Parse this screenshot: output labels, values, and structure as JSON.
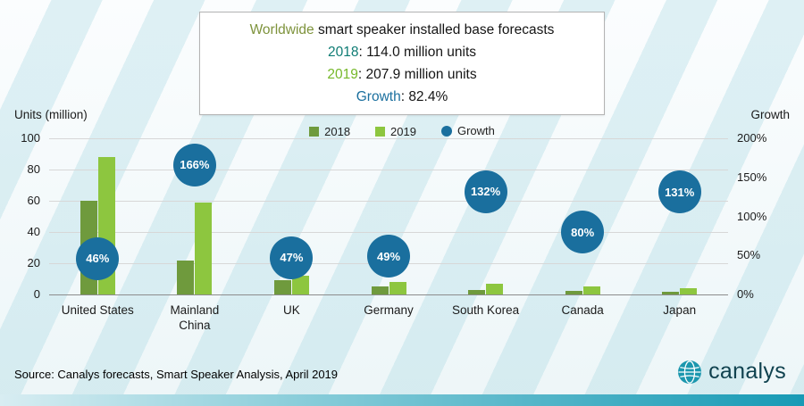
{
  "title_box": {
    "line1_highlight": "Worldwide",
    "line1_rest": " smart speaker installed base forecasts",
    "line2_label": "2018",
    "line2_rest": ": 114.0 million units",
    "line3_label": "2019",
    "line3_rest": ": 207.9 million units",
    "line4_label": "Growth",
    "line4_rest": ": 82.4%"
  },
  "axes": {
    "left_title": "Units (million)",
    "right_title": "Growth",
    "left_ticks": [
      "0",
      "20",
      "40",
      "60",
      "80",
      "100"
    ],
    "right_ticks": [
      "0%",
      "50%",
      "100%",
      "150%",
      "200%"
    ]
  },
  "legend": [
    {
      "label": "2018",
      "color": "#6f9a3d",
      "shape": "square"
    },
    {
      "label": "2019",
      "color": "#8dc63f",
      "shape": "square"
    },
    {
      "label": "Growth",
      "color": "#1a6f9e",
      "shape": "circle"
    }
  ],
  "chart_data": {
    "type": "bar",
    "title": "Worldwide smart speaker installed base forecasts",
    "subtitle": "2018: 114.0 million units; 2019: 207.9 million units; Growth: 82.4%",
    "categories": [
      "United States",
      "Mainland\nChina",
      "UK",
      "Germany",
      "South Korea",
      "Canada",
      "Japan"
    ],
    "series": [
      {
        "name": "2018",
        "axis": "left",
        "values": [
          60,
          22,
          9,
          5,
          3,
          2.5,
          2
        ]
      },
      {
        "name": "2019",
        "axis": "left",
        "values": [
          88,
          59,
          12,
          8,
          7,
          5,
          4
        ]
      }
    ],
    "growth_series": {
      "name": "Growth",
      "axis": "right",
      "values_pct": [
        46,
        166,
        47,
        49,
        132,
        80,
        131
      ]
    },
    "left_axis": {
      "label": "Units (million)",
      "min": 0,
      "max": 100,
      "step": 20
    },
    "right_axis": {
      "label": "Growth",
      "min": 0,
      "max": 200,
      "step": 50,
      "suffix": "%"
    },
    "legend_position": "top",
    "grid": true
  },
  "footer": {
    "source": "Source: Canalys forecasts, Smart Speaker Analysis, April 2019",
    "brand": "canalys"
  },
  "colors": {
    "bar_2018": "#6f9a3d",
    "bar_2019": "#8dc63f",
    "growth_bubble": "#1a6f9e",
    "title_worldwide": "#7e933c",
    "title_2018": "#0e7c74",
    "title_2019": "#76b82a",
    "title_growth": "#1a6f9e",
    "bottom_bar_teal": "#179ab5"
  }
}
